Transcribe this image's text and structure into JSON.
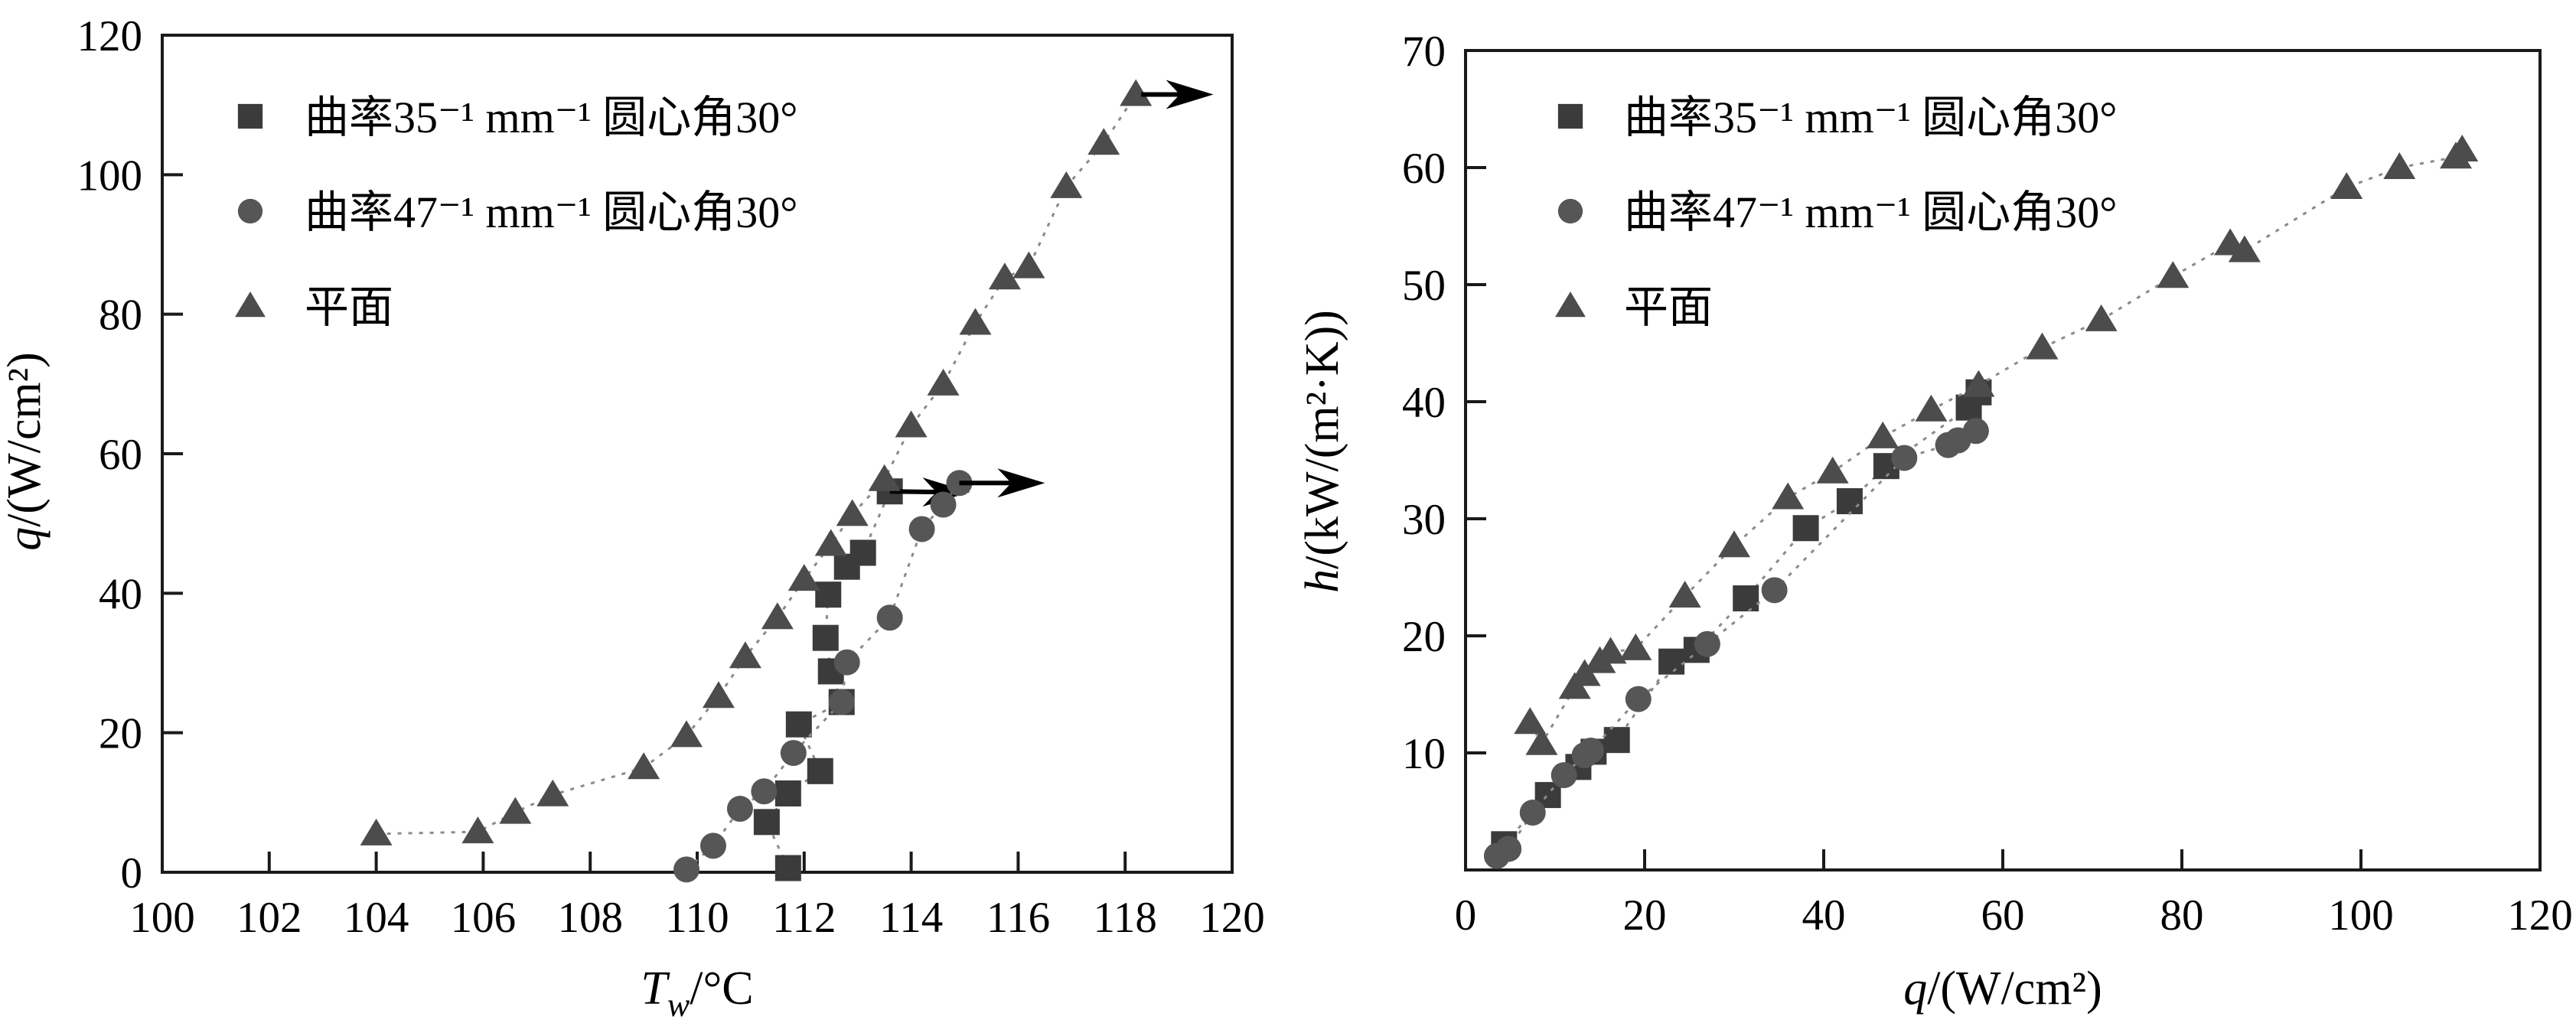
{
  "page": {
    "background": "#ffffff"
  },
  "colors": {
    "axis": "#1a1a1a",
    "line": "#8a8a8a",
    "arrow": "#000000",
    "text": "#000000"
  },
  "legend": {
    "items": [
      {
        "marker": "square",
        "label": "曲率35⁻¹ mm⁻¹  圆心角30°"
      },
      {
        "marker": "circle",
        "label": "曲率47⁻¹ mm⁻¹  圆心角30°"
      },
      {
        "marker": "triangle",
        "label": "平面"
      }
    ]
  },
  "chart_data": [
    {
      "id": "boiling-curve-chart",
      "type": "scatter",
      "title": "",
      "xlabel": {
        "var": "T",
        "sub": "w",
        "unit": "/°C"
      },
      "ylabel": {
        "var": "q",
        "sub": "",
        "unit": "/(W/cm²)"
      },
      "xlim": [
        100,
        120
      ],
      "ylim": [
        0,
        120
      ],
      "xticks": [
        100,
        102,
        104,
        106,
        108,
        110,
        112,
        114,
        116,
        118,
        120
      ],
      "yticks": [
        0,
        20,
        40,
        60,
        80,
        100,
        120
      ],
      "grid": false,
      "legend_position": "top-left",
      "series": [
        {
          "name": "曲率35⁻¹ mm⁻¹  圆心角30°",
          "marker": "square",
          "color": "#3b3b3b",
          "points": [
            [
              111.7,
              0.6
            ],
            [
              111.3,
              7.2
            ],
            [
              111.7,
              11.3
            ],
            [
              112.3,
              14.5
            ],
            [
              111.9,
              21.2
            ],
            [
              112.7,
              24.4
            ],
            [
              112.5,
              28.8
            ],
            [
              112.4,
              33.6
            ],
            [
              112.45,
              39.8
            ],
            [
              112.8,
              43.8
            ],
            [
              113.1,
              45.8
            ],
            [
              113.6,
              54.6
            ]
          ],
          "arrow": {
            "from": [
              113.6,
              54.6
            ],
            "to": [
              115.1,
              54.5
            ]
          }
        },
        {
          "name": "曲率47⁻¹ mm⁻¹  圆心角30°",
          "marker": "circle",
          "color": "#565656",
          "points": [
            [
              109.8,
              0.4
            ],
            [
              110.3,
              3.8
            ],
            [
              110.8,
              9.1
            ],
            [
              111.25,
              11.6
            ],
            [
              111.8,
              17.1
            ],
            [
              112.7,
              24.4
            ],
            [
              112.8,
              30.1
            ],
            [
              113.6,
              36.5
            ],
            [
              114.2,
              49.2
            ],
            [
              114.6,
              52.7
            ],
            [
              114.9,
              55.8
            ]
          ],
          "arrow": {
            "from": [
              114.9,
              55.8
            ],
            "to": [
              116.5,
              55.8
            ]
          }
        },
        {
          "name": "平面",
          "marker": "triangle",
          "color": "#4c4c4c",
          "points": [
            [
              104.0,
              5.5
            ],
            [
              105.9,
              5.8
            ],
            [
              106.6,
              8.6
            ],
            [
              107.3,
              11.1
            ],
            [
              109.0,
              15.0
            ],
            [
              109.8,
              19.6
            ],
            [
              110.4,
              25.2
            ],
            [
              110.9,
              30.9
            ],
            [
              111.5,
              36.5
            ],
            [
              112.0,
              42.0
            ],
            [
              112.5,
              47.0
            ],
            [
              112.9,
              51.3
            ],
            [
              113.5,
              56.3
            ],
            [
              114.0,
              64.0
            ],
            [
              114.6,
              70.0
            ],
            [
              115.2,
              78.7
            ],
            [
              115.75,
              85.2
            ],
            [
              116.2,
              86.8
            ],
            [
              116.9,
              98.3
            ],
            [
              117.6,
              104.5
            ],
            [
              118.2,
              111.5
            ]
          ],
          "arrow": {
            "from": [
              118.3,
              111.5
            ],
            "to": [
              119.65,
              111.5
            ]
          }
        }
      ]
    },
    {
      "id": "heat-transfer-coefficient-chart",
      "type": "scatter",
      "title": "",
      "xlabel": {
        "var": "q",
        "sub": "",
        "unit": "/(W/cm²)"
      },
      "ylabel": {
        "var": "h",
        "sub": "",
        "unit": "/(kW/(m²·K))"
      },
      "xlim": [
        0,
        120
      ],
      "ylim": [
        0,
        70
      ],
      "xticks": [
        0,
        20,
        40,
        60,
        80,
        100,
        120
      ],
      "yticks": [
        10,
        20,
        30,
        40,
        50,
        60,
        70
      ],
      "grid": false,
      "legend_position": "top-left",
      "series": [
        {
          "name": "曲率35⁻¹ mm⁻¹  圆心角30°",
          "marker": "square",
          "color": "#3b3b3b",
          "points": [
            [
              4.3,
              2.2
            ],
            [
              9.2,
              6.4
            ],
            [
              12.6,
              8.8
            ],
            [
              14.3,
              10.1
            ],
            [
              16.9,
              11.1
            ],
            [
              23.0,
              17.8
            ],
            [
              25.8,
              18.8
            ],
            [
              31.3,
              23.2
            ],
            [
              38.0,
              29.2
            ],
            [
              42.9,
              31.5
            ],
            [
              47.0,
              34.5
            ],
            [
              56.2,
              39.5
            ],
            [
              57.3,
              40.8
            ]
          ],
          "arrow": null
        },
        {
          "name": "曲率47⁻¹ mm⁻¹  圆心角30°",
          "marker": "circle",
          "color": "#565656",
          "points": [
            [
              3.5,
              1.2
            ],
            [
              4.8,
              1.8
            ],
            [
              7.5,
              4.9
            ],
            [
              11.0,
              8.1
            ],
            [
              13.3,
              9.8
            ],
            [
              14.0,
              10.2
            ],
            [
              19.3,
              14.6
            ],
            [
              27.0,
              19.3
            ],
            [
              34.5,
              23.9
            ],
            [
              49.0,
              35.2
            ],
            [
              53.9,
              36.3
            ],
            [
              55.0,
              36.7
            ],
            [
              57.0,
              37.5
            ]
          ],
          "arrow": null
        },
        {
          "name": "平面",
          "marker": "triangle",
          "color": "#4c4c4c",
          "points": [
            [
              7.2,
              12.6
            ],
            [
              8.5,
              10.8
            ],
            [
              12.2,
              15.6
            ],
            [
              13.3,
              16.7
            ],
            [
              15.0,
              17.8
            ],
            [
              16.2,
              18.6
            ],
            [
              19.0,
              18.9
            ],
            [
              24.5,
              23.4
            ],
            [
              30.0,
              27.7
            ],
            [
              36.0,
              31.8
            ],
            [
              41.0,
              34.0
            ],
            [
              46.6,
              37.0
            ],
            [
              52.0,
              39.3
            ],
            [
              57.3,
              41.4
            ],
            [
              64.4,
              44.6
            ],
            [
              71.0,
              47.0
            ],
            [
              79.0,
              50.7
            ],
            [
              85.4,
              53.5
            ],
            [
              87.0,
              52.9
            ],
            [
              98.4,
              58.3
            ],
            [
              104.3,
              60.0
            ],
            [
              110.6,
              60.9
            ],
            [
              111.3,
              61.5
            ]
          ],
          "arrow": null
        }
      ]
    }
  ]
}
